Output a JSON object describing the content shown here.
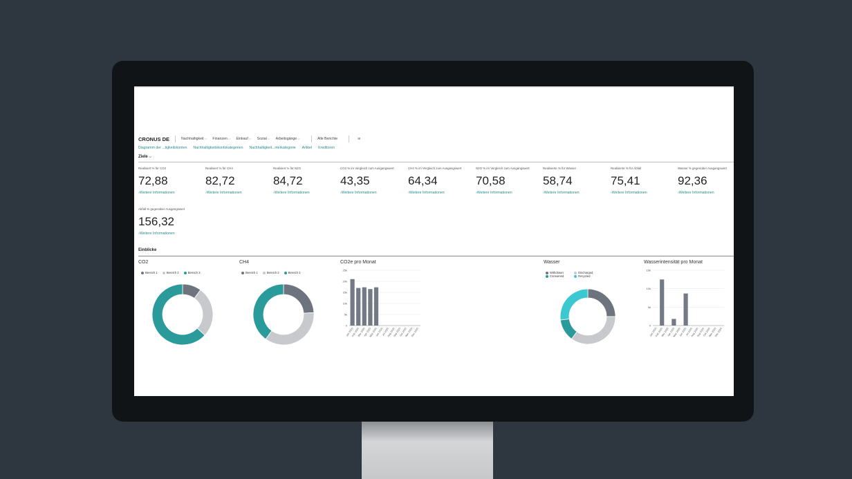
{
  "header": {
    "company": "CRONUS DE",
    "menu": [
      "Nachhaltigkeit",
      "Finanzen",
      "Einkauf",
      "Sozial",
      "Arbeitsgänge"
    ],
    "all_reports": "Alle Berichte",
    "links": [
      "Diagramm der ...tigkeitskonten",
      "Nachhaltigkeitskontokategorien",
      "Nachhaltigkeit...nterkategorie",
      "Artikel",
      "Kreditoren"
    ]
  },
  "goals": {
    "title": "Ziele",
    "more_label": "Weitere Informationen",
    "tiles": [
      {
        "label": "Realisiert % für CO2",
        "value": "72,88"
      },
      {
        "label": "Realisiert % für CH4",
        "value": "82,72"
      },
      {
        "label": "Realisiert % für N2O",
        "value": "84,72"
      },
      {
        "label": "CO2 % im Vergleich zum Ausgangswert",
        "value": "43,35"
      },
      {
        "label": "CH4 % im Vergleich zum Ausgangswert",
        "value": "64,34"
      },
      {
        "label": "N2O % im Vergleich zum Ausgangswert",
        "value": "70,58"
      },
      {
        "label": "Realisierte % für Wasser",
        "value": "58,74"
      },
      {
        "label": "Realisierte % für Abfall",
        "value": "75,41"
      },
      {
        "label": "Wasser % gegenüber Ausgangswert",
        "value": "92,36"
      },
      {
        "label": "Abfall % gegenüber Ausgangswert",
        "value": "156,32"
      }
    ]
  },
  "insights": {
    "title": "Einblicke"
  },
  "chart_data": [
    {
      "type": "pie",
      "title": "CO2",
      "labels": [
        "Bereich 1",
        "Bereich 2",
        "Bereich 3"
      ],
      "values": [
        10,
        27,
        63
      ],
      "colors": [
        "#6d747e",
        "#c8c9cc",
        "#2a9a9a"
      ]
    },
    {
      "type": "pie",
      "title": "CH4",
      "labels": [
        "Bereich 1",
        "Bereich 2",
        "Bereich 3"
      ],
      "values": [
        24,
        36,
        40
      ],
      "colors": [
        "#6d747e",
        "#c8c9cc",
        "#2a9a9a"
      ]
    },
    {
      "type": "bar",
      "title": "CO2e pro Monat",
      "categories": [
        "Jan 2025",
        "Feb 2025",
        "Mar 2025",
        "Apr 2025",
        "May 2025",
        "Jun 2025",
        "Jul 2025",
        "Aug 2025",
        "Sep 2025",
        "Oct 2025",
        "Nov 2025",
        "Dec 2025"
      ],
      "values": [
        21000,
        17000,
        17300,
        16500,
        17300,
        0,
        0,
        0,
        0,
        0,
        0,
        0
      ],
      "yticks": [
        "0",
        "5k",
        "10k",
        "15k",
        "20k",
        "25k"
      ],
      "ylim": [
        0,
        25000
      ],
      "color": "#737a85"
    },
    {
      "type": "pie",
      "title": "Wasser",
      "labels": [
        "Withdrawn",
        "Discharged",
        "Consumed",
        "Recycled"
      ],
      "values": [
        25,
        35,
        13,
        27
      ],
      "colors": [
        "#6d747e",
        "#c8c9cc",
        "#2a9a9a",
        "#3cc8d0"
      ]
    },
    {
      "type": "bar",
      "title": "Wasserintensität pro Monat",
      "categories": [
        "Jan 2025",
        "Feb 2025",
        "Mar 2025",
        "Apr 2025",
        "May 2025",
        "Jun 2025",
        "Jul 2025",
        "Aug 2025",
        "Sep 2025",
        "Oct 2025",
        "Nov 2025",
        "Dec 2025"
      ],
      "values": [
        0,
        12500,
        0,
        1800,
        0,
        8700,
        0,
        0,
        0,
        0,
        0,
        0
      ],
      "yticks": [
        "0",
        "5k",
        "10k",
        "15k"
      ],
      "ylim": [
        0,
        15000
      ],
      "color": "#737a85"
    }
  ]
}
